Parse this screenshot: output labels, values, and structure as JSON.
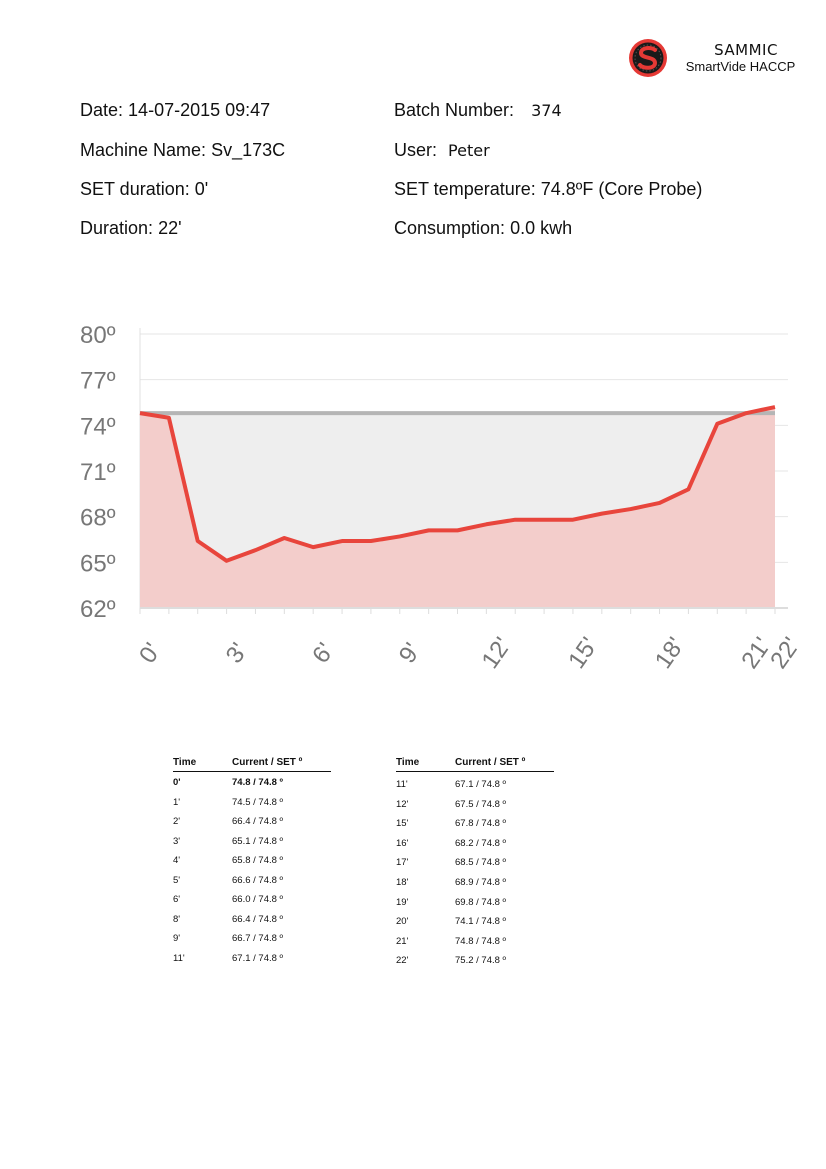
{
  "brand": {
    "name": "SAMMIC",
    "subtitle": "SmartVide HACCP",
    "logo_icon": "sammic-s-logo-icon",
    "logo_color": "#e53935"
  },
  "info": {
    "date_label": "Date:",
    "date_value": "14-07-2015 09:47",
    "machine_label": "Machine Name:",
    "machine_value": "Sv_173C",
    "set_duration_label": "SET duration:",
    "set_duration_value": "0'",
    "duration_label": "Duration:",
    "duration_value": "22'",
    "batch_label": "Batch Number:",
    "batch_value": "374",
    "user_label": "User:",
    "user_value": "Peter",
    "set_temp_label": "SET temperature:",
    "set_temp_value": "74.8ºF (Core Probe)",
    "consumption_label": "Consumption:",
    "consumption_value": "0.0 kwh"
  },
  "chart_data": {
    "type": "area",
    "ylim": [
      62,
      80
    ],
    "xlim": [
      0,
      22
    ],
    "y_ticks": [
      62,
      65,
      68,
      71,
      74,
      77,
      80
    ],
    "y_tick_labels": [
      "62º",
      "65º",
      "68º",
      "71º",
      "74º",
      "77º",
      "80º"
    ],
    "x_ticks": [
      0,
      3,
      6,
      9,
      12,
      15,
      18,
      21,
      22
    ],
    "x_tick_labels": [
      "0'",
      "3'",
      "6'",
      "9'",
      "12'",
      "15'",
      "18'",
      "21'",
      "22'"
    ],
    "grid": true,
    "set_value": 74.8,
    "series": [
      {
        "x": [
          0,
          1,
          2,
          3,
          4,
          5,
          6,
          7,
          8,
          9,
          10,
          11,
          12,
          13,
          14,
          15,
          16,
          17,
          18,
          19,
          20,
          21,
          22
        ],
        "y": [
          74.8,
          74.5,
          66.4,
          65.1,
          65.8,
          66.6,
          66.0,
          66.4,
          66.4,
          66.7,
          67.1,
          67.1,
          67.5,
          67.8,
          67.8,
          67.8,
          68.2,
          68.5,
          68.9,
          69.8,
          74.1,
          74.8,
          75.2
        ]
      }
    ],
    "line_color": "#e8453c",
    "fill_color": "#f3c9c6",
    "set_line_color": "#b5b5b5",
    "set_fill_color": "#eeeeee"
  },
  "table": {
    "header_time": "Time",
    "header_current": "Current / SET º",
    "left_rows": [
      {
        "time": "0'",
        "value": "74.8 / 74.8 º",
        "bold": true
      },
      {
        "time": "1'",
        "value": "74.5 / 74.8 º"
      },
      {
        "time": "2'",
        "value": "66.4 / 74.8 º"
      },
      {
        "time": "3'",
        "value": "65.1 / 74.8 º"
      },
      {
        "time": "4'",
        "value": "65.8 / 74.8 º"
      },
      {
        "time": "5'",
        "value": "66.6 / 74.8 º"
      },
      {
        "time": "6'",
        "value": "66.0 / 74.8 º"
      },
      {
        "time": "8'",
        "value": "66.4 / 74.8 º"
      },
      {
        "time": "9'",
        "value": "66.7 / 74.8 º"
      },
      {
        "time": "11'",
        "value": "67.1 / 74.8 º"
      }
    ],
    "right_rows": [
      {
        "time": "11'",
        "value": "67.1 / 74.8 º"
      },
      {
        "time": "12'",
        "value": "67.5 / 74.8 º"
      },
      {
        "time": "15'",
        "value": "67.8 / 74.8 º"
      },
      {
        "time": "16'",
        "value": "68.2 / 74.8 º"
      },
      {
        "time": "17'",
        "value": "68.5 / 74.8 º"
      },
      {
        "time": "18'",
        "value": "68.9 / 74.8 º"
      },
      {
        "time": "19'",
        "value": "69.8 / 74.8 º"
      },
      {
        "time": "20'",
        "value": "74.1 / 74.8 º"
      },
      {
        "time": "21'",
        "value": "74.8 / 74.8 º"
      },
      {
        "time": "22'",
        "value": "75.2 / 74.8 º"
      }
    ]
  }
}
